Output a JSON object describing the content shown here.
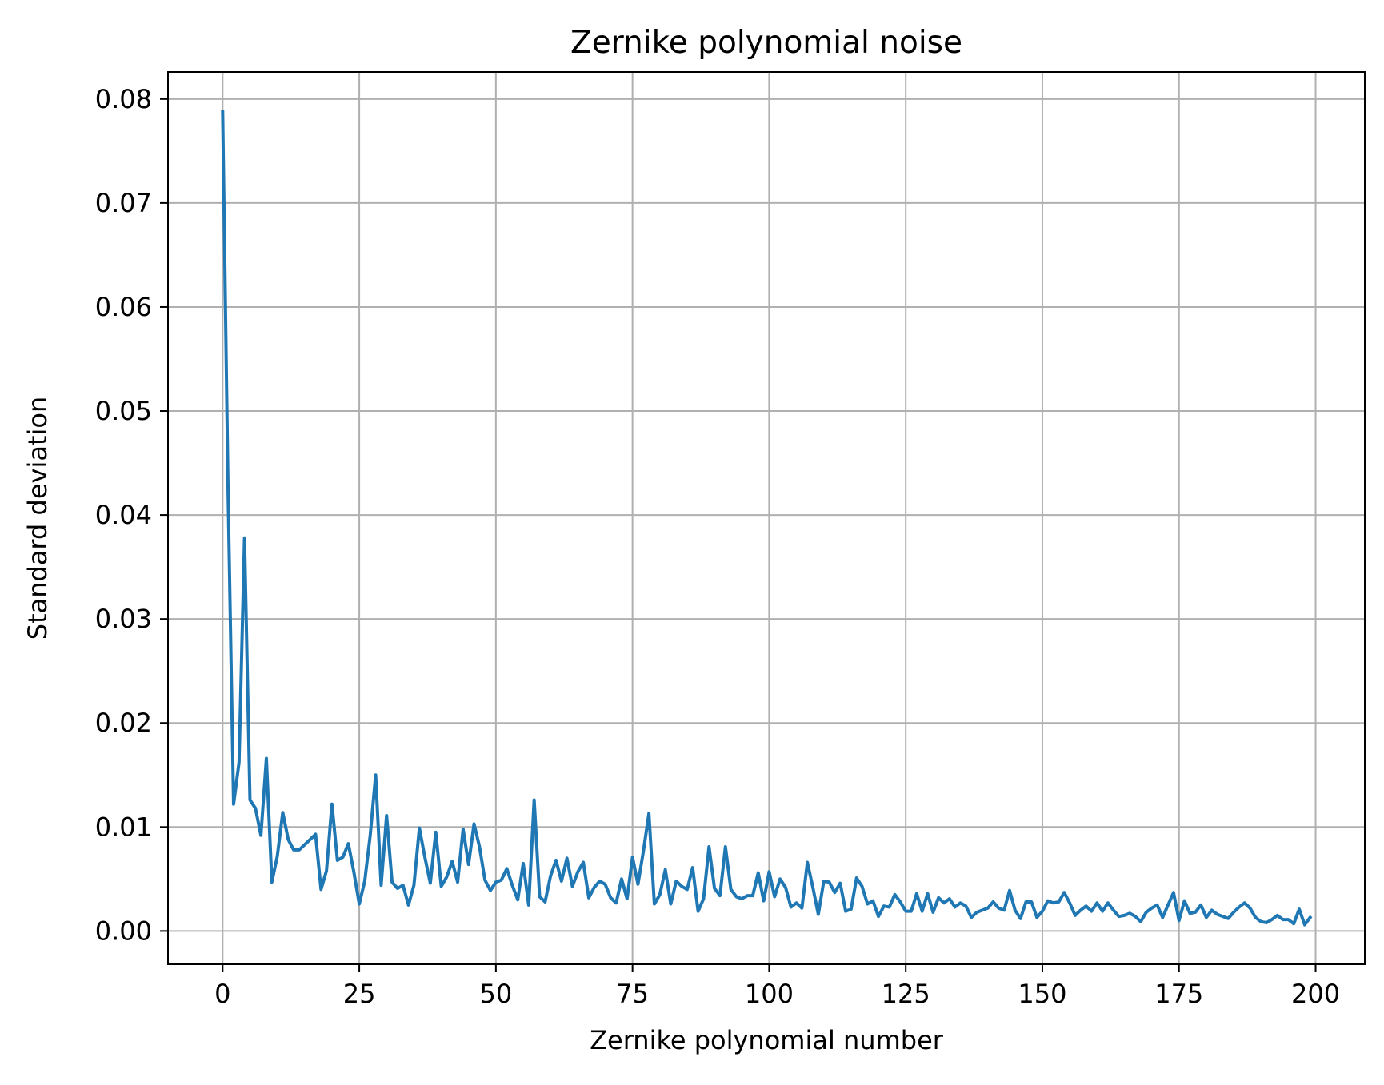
{
  "chart_data": {
    "type": "line",
    "title": "Zernike polynomial noise",
    "xlabel": "Zernike polynomial number",
    "ylabel": "Standard deviation",
    "xlim": [
      -10,
      209
    ],
    "ylim": [
      -0.0032,
      0.0826
    ],
    "xticks": [
      0,
      25,
      50,
      75,
      100,
      125,
      150,
      175,
      200
    ],
    "xtick_labels": [
      "0",
      "25",
      "50",
      "75",
      "100",
      "125",
      "150",
      "175",
      "200"
    ],
    "yticks": [
      0.0,
      0.01,
      0.02,
      0.03,
      0.04,
      0.05,
      0.06,
      0.07,
      0.08
    ],
    "ytick_labels": [
      "0.00",
      "0.01",
      "0.02",
      "0.03",
      "0.04",
      "0.05",
      "0.06",
      "0.07",
      "0.08"
    ],
    "grid": true,
    "line_color": "#1f77b4",
    "grid_color": "#b0b0b0",
    "series": [
      {
        "x": [
          0,
          1,
          2,
          3,
          4,
          5,
          6,
          7,
          8,
          9,
          10,
          11,
          12,
          13,
          14,
          15,
          16,
          17,
          18,
          19,
          20,
          21,
          22,
          23,
          24,
          25,
          26,
          27,
          28,
          29,
          30,
          31,
          32,
          33,
          34,
          35,
          36,
          37,
          38,
          39,
          40,
          41,
          42,
          43,
          44,
          45,
          46,
          47,
          48,
          49,
          50,
          51,
          52,
          53,
          54,
          55,
          56,
          57,
          58,
          59,
          60,
          61,
          62,
          63,
          64,
          65,
          66,
          67,
          68,
          69,
          70,
          71,
          72,
          73,
          74,
          75,
          76,
          77,
          78,
          79,
          80,
          81,
          82,
          83,
          84,
          85,
          86,
          87,
          88,
          89,
          90,
          91,
          92,
          93,
          94,
          95,
          96,
          97,
          98,
          99,
          100,
          101,
          102,
          103,
          104,
          105,
          106,
          107,
          108,
          109,
          110,
          111,
          112,
          113,
          114,
          115,
          116,
          117,
          118,
          119,
          120,
          121,
          122,
          123,
          124,
          125,
          126,
          127,
          128,
          129,
          130,
          131,
          132,
          133,
          134,
          135,
          136,
          137,
          138,
          139,
          140,
          141,
          142,
          143,
          144,
          145,
          146,
          147,
          148,
          149,
          150,
          151,
          152,
          153,
          154,
          155,
          156,
          157,
          158,
          159,
          160,
          161,
          162,
          163,
          164,
          165,
          166,
          167,
          168,
          169,
          170,
          171,
          172,
          173,
          174,
          175,
          176,
          177,
          178,
          179,
          180,
          181,
          182,
          183,
          184,
          185,
          186,
          187,
          188,
          189,
          190,
          191,
          192,
          193,
          194,
          195,
          196,
          197,
          198,
          199
        ],
        "values": [
          0.0788,
          0.042,
          0.0122,
          0.0162,
          0.0378,
          0.0126,
          0.0118,
          0.0092,
          0.0166,
          0.0047,
          0.0072,
          0.0114,
          0.0088,
          0.0078,
          0.0078,
          0.0083,
          0.0088,
          0.0093,
          0.004,
          0.0058,
          0.0122,
          0.0068,
          0.0071,
          0.0084,
          0.0057,
          0.0026,
          0.0048,
          0.0092,
          0.015,
          0.0044,
          0.0111,
          0.0047,
          0.0041,
          0.0044,
          0.0025,
          0.0044,
          0.0099,
          0.0071,
          0.0046,
          0.0095,
          0.0043,
          0.0052,
          0.0067,
          0.0047,
          0.0098,
          0.0064,
          0.0103,
          0.0081,
          0.0049,
          0.0039,
          0.0047,
          0.0049,
          0.006,
          0.0044,
          0.003,
          0.0065,
          0.0025,
          0.0126,
          0.0033,
          0.0028,
          0.0053,
          0.0068,
          0.0048,
          0.007,
          0.0043,
          0.0057,
          0.0066,
          0.0032,
          0.0042,
          0.0048,
          0.0045,
          0.0032,
          0.0027,
          0.005,
          0.0031,
          0.0071,
          0.0045,
          0.0077,
          0.0113,
          0.0026,
          0.0035,
          0.0059,
          0.0026,
          0.0048,
          0.0043,
          0.004,
          0.0061,
          0.0019,
          0.0031,
          0.0081,
          0.0041,
          0.0034,
          0.0081,
          0.004,
          0.0033,
          0.0031,
          0.0034,
          0.0034,
          0.0056,
          0.0029,
          0.0057,
          0.0033,
          0.005,
          0.0042,
          0.0023,
          0.0027,
          0.0022,
          0.0066,
          0.0042,
          0.0016,
          0.0048,
          0.0047,
          0.0037,
          0.0046,
          0.0019,
          0.0021,
          0.0051,
          0.0043,
          0.0026,
          0.0029,
          0.0014,
          0.0024,
          0.0023,
          0.0035,
          0.0028,
          0.0019,
          0.0019,
          0.0036,
          0.0019,
          0.0036,
          0.0018,
          0.0032,
          0.0027,
          0.0031,
          0.0023,
          0.0027,
          0.0024,
          0.0013,
          0.0018,
          0.002,
          0.0022,
          0.0028,
          0.0022,
          0.002,
          0.0039,
          0.002,
          0.0012,
          0.0028,
          0.0028,
          0.0013,
          0.0019,
          0.0029,
          0.0027,
          0.0028,
          0.0037,
          0.0027,
          0.0015,
          0.002,
          0.0024,
          0.0019,
          0.0027,
          0.0019,
          0.0027,
          0.002,
          0.0014,
          0.0015,
          0.0017,
          0.0014,
          0.0009,
          0.0018,
          0.0022,
          0.0025,
          0.0013,
          0.0025,
          0.0037,
          0.001,
          0.0029,
          0.0017,
          0.0018,
          0.0025,
          0.0013,
          0.002,
          0.0016,
          0.0014,
          0.0012,
          0.0018,
          0.0023,
          0.0027,
          0.0022,
          0.0013,
          0.0009,
          0.0008,
          0.0011,
          0.0015,
          0.0011,
          0.0011,
          0.0007,
          0.0021,
          0.0006,
          0.0013
        ]
      }
    ]
  }
}
